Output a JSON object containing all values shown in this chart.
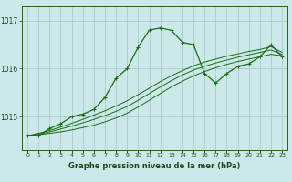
{
  "xlabel": "Graphe pression niveau de la mer (hPa)",
  "bg_color": "#cce8e8",
  "grid_color": "#aacccc",
  "line_color": "#1a6b1a",
  "x_ticks": [
    0,
    1,
    2,
    3,
    4,
    5,
    6,
    7,
    8,
    9,
    10,
    11,
    12,
    13,
    14,
    15,
    16,
    17,
    18,
    19,
    20,
    21,
    22,
    23
  ],
  "ylim": [
    1014.3,
    1017.3
  ],
  "yticks": [
    1015,
    1016,
    1017
  ],
  "main_y": [
    1014.6,
    1014.6,
    1014.75,
    1014.85,
    1015.0,
    1015.05,
    1015.15,
    1015.4,
    1015.8,
    1016.0,
    1016.45,
    1016.8,
    1016.85,
    1016.8,
    1016.55,
    1016.5,
    1015.9,
    1015.7,
    1015.9,
    1016.05,
    1016.1,
    1016.25,
    1016.5,
    1016.25
  ],
  "trend1_y": [
    1014.6,
    1014.62,
    1014.65,
    1014.68,
    1014.72,
    1014.77,
    1014.82,
    1014.89,
    1014.97,
    1015.07,
    1015.2,
    1015.34,
    1015.48,
    1015.62,
    1015.74,
    1015.85,
    1015.94,
    1016.02,
    1016.09,
    1016.15,
    1016.2,
    1016.25,
    1016.3,
    1016.27
  ],
  "trend2_y": [
    1014.6,
    1014.63,
    1014.68,
    1014.74,
    1014.8,
    1014.87,
    1014.94,
    1015.02,
    1015.11,
    1015.21,
    1015.34,
    1015.48,
    1015.62,
    1015.75,
    1015.87,
    1015.97,
    1016.05,
    1016.12,
    1016.18,
    1016.24,
    1016.29,
    1016.34,
    1016.39,
    1016.3
  ],
  "trend3_y": [
    1014.6,
    1014.65,
    1014.71,
    1014.78,
    1014.86,
    1014.94,
    1015.03,
    1015.12,
    1015.22,
    1015.33,
    1015.46,
    1015.59,
    1015.73,
    1015.85,
    1015.96,
    1016.06,
    1016.14,
    1016.2,
    1016.26,
    1016.31,
    1016.36,
    1016.4,
    1016.46,
    1016.34
  ]
}
